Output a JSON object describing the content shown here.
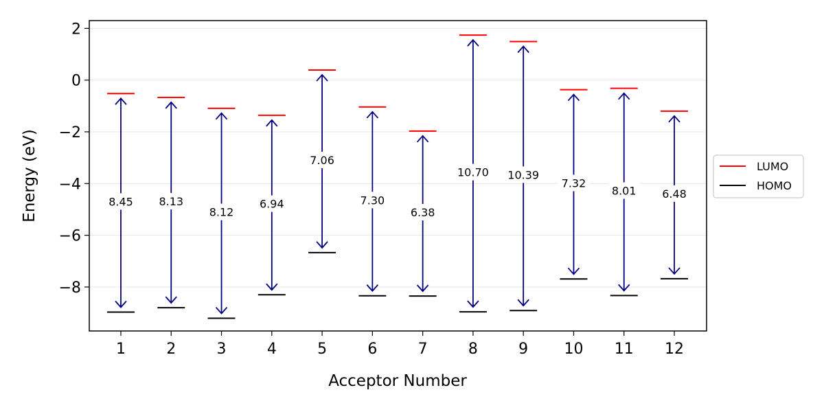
{
  "chart_data": {
    "type": "line",
    "xlabel": "Acceptor Number",
    "ylabel": "Energy (eV)",
    "categories": [
      "1",
      "2",
      "3",
      "4",
      "5",
      "6",
      "7",
      "8",
      "9",
      "10",
      "11",
      "12"
    ],
    "ylim": [
      -9.7,
      2.3
    ],
    "yticks": [
      -8,
      -6,
      -4,
      -2,
      0,
      2
    ],
    "grid": "horizontal",
    "legend_position": "right-outside",
    "series": [
      {
        "name": "LUMO",
        "color": "#ff0000",
        "values": [
          -0.52,
          -0.67,
          -1.09,
          -1.36,
          0.39,
          -1.04,
          -1.97,
          1.74,
          1.49,
          -0.37,
          -0.32,
          -1.2
        ]
      },
      {
        "name": "HOMO",
        "color": "#000000",
        "values": [
          -8.97,
          -8.8,
          -9.21,
          -8.3,
          -6.67,
          -8.34,
          -8.35,
          -8.96,
          -8.91,
          -7.69,
          -8.33,
          -7.68
        ]
      }
    ],
    "gap_labels": [
      "8.45",
      "8.13",
      "8.12",
      "6.94",
      "7.06",
      "7.30",
      "6.38",
      "10.70",
      "10.39",
      "7.32",
      "8.01",
      "6.48"
    ],
    "arrow_color": "#000080"
  }
}
